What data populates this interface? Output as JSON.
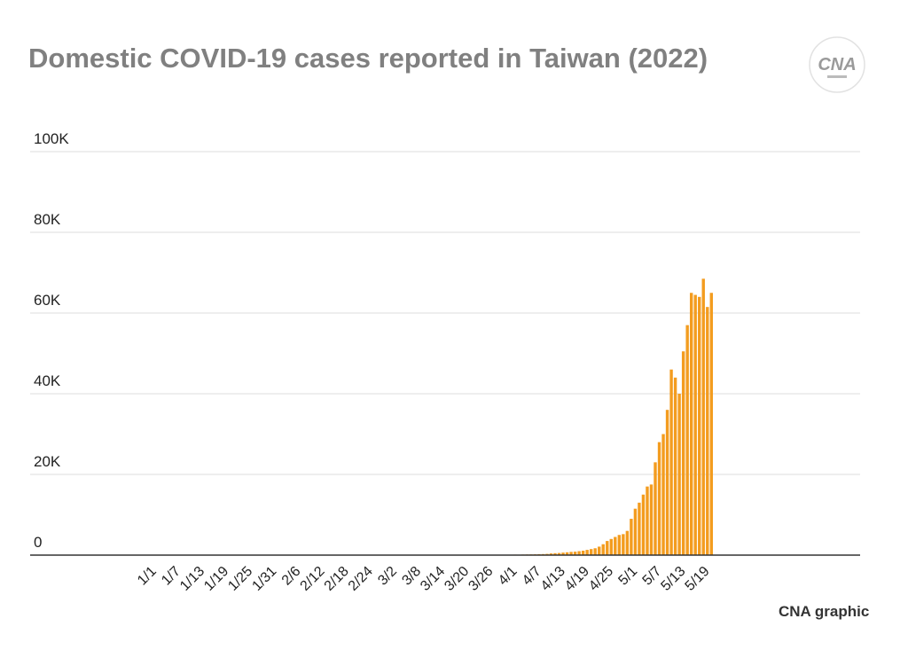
{
  "title": "Domestic COVID-19 cases reported in Taiwan (2022)",
  "credit": "CNA graphic",
  "logo": {
    "text": "CNA",
    "icon": "cna-logo-icon",
    "color": "#9a9a9a"
  },
  "colors": {
    "bar": "#f39c1f",
    "grid": "#dcdcdc",
    "axis": "#333333"
  },
  "chart_data": {
    "type": "bar",
    "title": "Domestic COVID-19 cases reported in Taiwan (2022)",
    "xlabel": "",
    "ylabel": "",
    "ylim": [
      0,
      100000
    ],
    "yticks": [
      0,
      20000,
      40000,
      60000,
      80000,
      100000
    ],
    "ytick_labels": [
      "0",
      "20K",
      "40K",
      "60K",
      "80K",
      "100K"
    ],
    "xtick_labels": [
      "1/1",
      "1/7",
      "1/13",
      "1/19",
      "1/25",
      "1/31",
      "2/6",
      "2/12",
      "2/18",
      "2/24",
      "3/2",
      "3/8",
      "3/14",
      "3/20",
      "3/26",
      "4/1",
      "4/7",
      "4/13",
      "4/19",
      "4/25",
      "5/1",
      "5/7",
      "5/13",
      "5/19"
    ],
    "grid": true,
    "legend": "none",
    "x": [
      "4/1",
      "4/2",
      "4/3",
      "4/4",
      "4/5",
      "4/6",
      "4/7",
      "4/8",
      "4/9",
      "4/10",
      "4/11",
      "4/12",
      "4/13",
      "4/14",
      "4/15",
      "4/16",
      "4/17",
      "4/18",
      "4/19",
      "4/20",
      "4/21",
      "4/22",
      "4/23",
      "4/24",
      "4/25",
      "4/26",
      "4/27",
      "4/28",
      "4/29",
      "4/30",
      "5/1",
      "5/2",
      "5/3",
      "5/4",
      "5/5",
      "5/6",
      "5/7",
      "5/8",
      "5/9",
      "5/10",
      "5/11",
      "5/12",
      "5/13",
      "5/14",
      "5/15",
      "5/16",
      "5/17",
      "5/18",
      "5/19",
      "5/20"
    ],
    "values": [
      120,
      110,
      140,
      160,
      180,
      200,
      240,
      260,
      310,
      420,
      480,
      530,
      620,
      700,
      800,
      850,
      980,
      1100,
      1300,
      1500,
      1700,
      2100,
      2700,
      3500,
      4000,
      4500,
      5000,
      5200,
      6000,
      9000,
      11500,
      13000,
      15000,
      17000,
      17500,
      23000,
      28000,
      30000,
      36000,
      46000,
      44000,
      40000,
      50500,
      57000,
      65000,
      64500,
      64000,
      68500,
      61500,
      65000
    ]
  }
}
